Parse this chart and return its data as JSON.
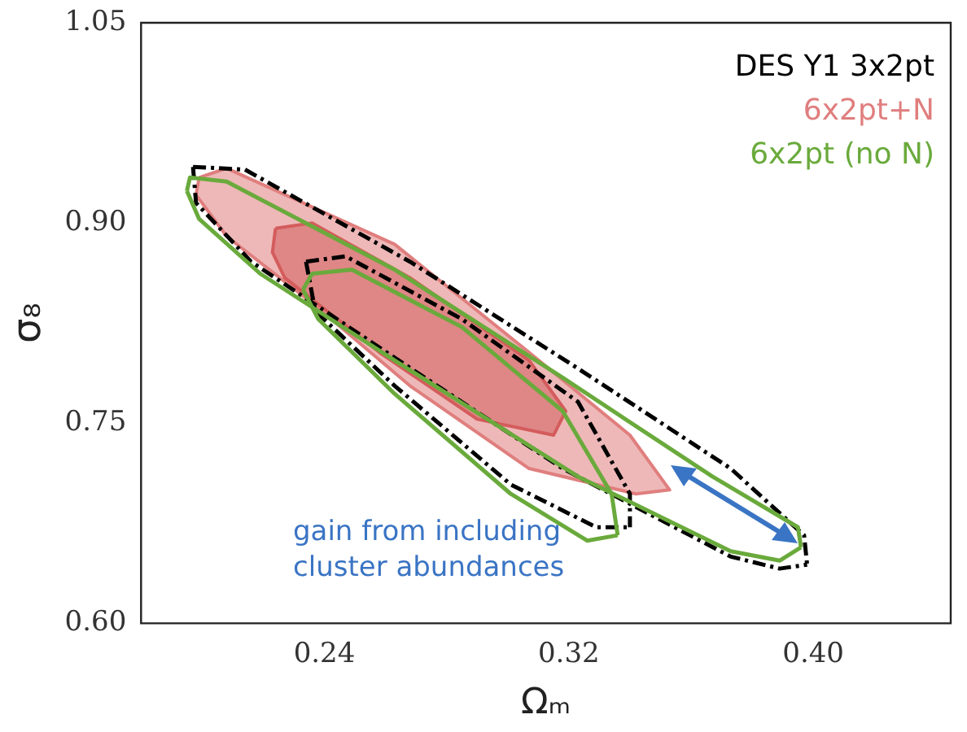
{
  "chart_data": {
    "type": "line",
    "xlabel": "Ωₘ",
    "ylabel": "σ₈",
    "xlim": [
      0.18,
      0.445
    ],
    "ylim": [
      0.6,
      1.05
    ],
    "xticks": [
      0.24,
      0.32,
      {
        "value": 0.4,
        "label": "0.40"
      }
    ],
    "yticks": [
      {
        "value": 0.6,
        "label": "0.60"
      },
      0.75,
      {
        "value": 0.9,
        "label": "0.90"
      },
      1.05
    ],
    "grid": false,
    "legend": "top right",
    "marker": "none",
    "annotations": [
      "gain from including cluster abundances"
    ],
    "series": [
      {
        "name": "DES Y1 3x2pt",
        "line_style": "dashed",
        "color": "#000000",
        "x": [
          0.197,
          0.214,
          0.268,
          0.323,
          0.373,
          0.397,
          0.398
        ],
        "values": [
          0.942,
          0.94,
          0.871,
          0.791,
          0.716,
          0.666,
          0.644
        ]
      },
      {
        "line_style": "dashed",
        "color": "#000000",
        "x": [
          0.197,
          0.198,
          0.216,
          0.263,
          0.318,
          0.373,
          0.389,
          0.398
        ],
        "values": [
          0.942,
          0.915,
          0.871,
          0.799,
          0.716,
          0.65,
          0.641,
          0.644
        ]
      },
      {
        "line_style": "dashed",
        "color": "#000000",
        "x": [
          0.234,
          0.247,
          0.285,
          0.323,
          0.34,
          0.34
        ],
        "values": [
          0.871,
          0.875,
          0.828,
          0.766,
          0.697,
          0.672
        ]
      },
      {
        "line_style": "dashed",
        "color": "#000000",
        "x": [
          0.234,
          0.237,
          0.263,
          0.301,
          0.329,
          0.34
        ],
        "values": [
          0.871,
          0.834,
          0.778,
          0.704,
          0.672,
          0.672
        ]
      },
      {
        "name": "6x2pt+N",
        "type": "area",
        "color": "#e07e7e",
        "x": [
          0.199,
          0.208,
          0.263,
          0.307,
          0.34,
          0.353,
          0.342,
          0.307,
          0.268,
          0.236,
          0.208,
          0.198,
          0.199
        ],
        "values": [
          0.934,
          0.941,
          0.884,
          0.803,
          0.741,
          0.7,
          0.697,
          0.716,
          0.778,
          0.84,
          0.89,
          0.921,
          0.934
        ]
      },
      {
        "type": "area",
        "color": "#d45c5c",
        "x": [
          0.224,
          0.236,
          0.268,
          0.307,
          0.319,
          0.315,
          0.29,
          0.258,
          0.227,
          0.223,
          0.224
        ],
        "values": [
          0.896,
          0.9,
          0.859,
          0.797,
          0.759,
          0.741,
          0.753,
          0.803,
          0.859,
          0.878,
          0.896
        ]
      },
      {
        "name": "6x2pt (no N)",
        "line_style": "solid",
        "color": "#6aaa3c",
        "x": [
          0.195,
          0.196,
          0.208,
          0.263,
          0.318,
          0.367,
          0.395,
          0.396
        ],
        "values": [
          0.924,
          0.934,
          0.931,
          0.865,
          0.784,
          0.71,
          0.672,
          0.657
        ]
      },
      {
        "line_style": "solid",
        "color": "#6aaa3c",
        "x": [
          0.195,
          0.199,
          0.219,
          0.263,
          0.323,
          0.373,
          0.389,
          0.396
        ],
        "values": [
          0.924,
          0.903,
          0.862,
          0.797,
          0.71,
          0.654,
          0.647,
          0.657
        ]
      },
      {
        "line_style": "solid",
        "color": "#6aaa3c",
        "x": [
          0.233,
          0.236,
          0.249,
          0.285,
          0.318,
          0.334,
          0.336
        ],
        "values": [
          0.85,
          0.862,
          0.865,
          0.822,
          0.759,
          0.697,
          0.666
        ]
      },
      {
        "line_style": "solid",
        "color": "#6aaa3c",
        "x": [
          0.233,
          0.238,
          0.263,
          0.301,
          0.326,
          0.336
        ],
        "values": [
          0.85,
          0.828,
          0.772,
          0.697,
          0.662,
          0.666
        ]
      }
    ]
  }
}
